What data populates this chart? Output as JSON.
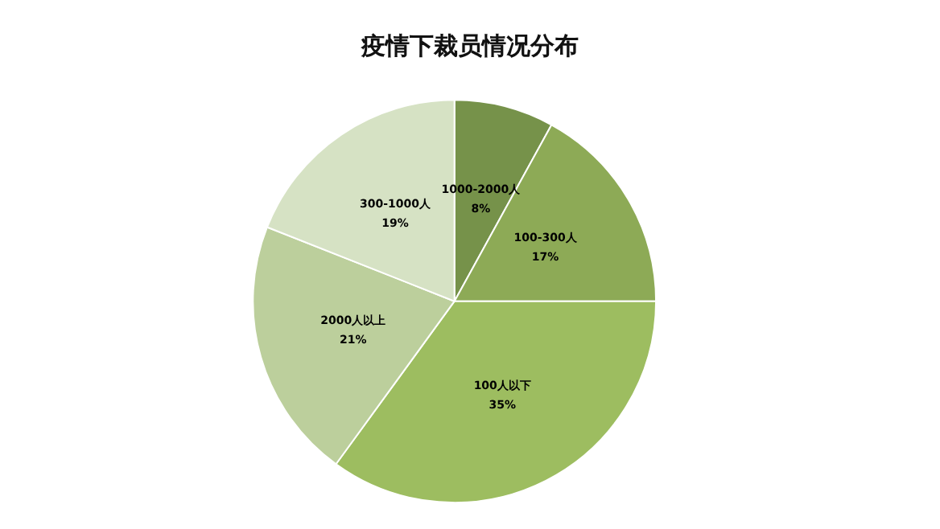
{
  "chart_data": {
    "type": "pie",
    "title": "疫情下裁员情况分布",
    "categories": [
      "1000-2000人",
      "100-300人",
      "100人以下",
      "2000人以上",
      "300-1000人"
    ],
    "values": [
      8,
      17,
      35,
      21,
      19
    ],
    "colors": [
      "#76924a",
      "#8daa56",
      "#9dbd60",
      "#bccf9c",
      "#d6e2c4"
    ],
    "value_labels": [
      "8%",
      "17%",
      "35%",
      "21%",
      "19%"
    ],
    "legend": false
  }
}
